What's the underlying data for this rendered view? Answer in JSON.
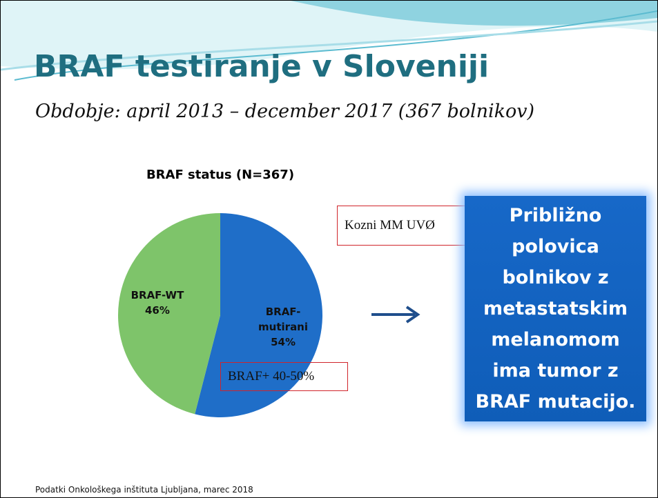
{
  "slide": {
    "title": "BRAF testiranje v Sloveniji",
    "subtitle": "Obdobje: april 2013 – december 2017 (367 bolnikov)",
    "annotations": [
      "Kozni MM UVØ",
      "BRAF+ 40-50%"
    ],
    "callout_lines": [
      "Približno",
      "polovica",
      "bolnikov z",
      "metastatskim",
      "melanomom",
      "ima tumor z",
      "BRAF mutacijo."
    ],
    "footer": "Podatki Onkološkega inštituta Ljubljana, marec 2018"
  },
  "chart_data": {
    "type": "pie",
    "title": "BRAF status (N=367)",
    "categories": [
      "BRAF-mutirani",
      "BRAF-WT"
    ],
    "values": [
      54,
      46
    ],
    "value_labels": [
      "54%",
      "46%"
    ],
    "colors": [
      "#1f6ec8",
      "#7ec46a"
    ],
    "start": "top",
    "direction": "clockwise"
  }
}
